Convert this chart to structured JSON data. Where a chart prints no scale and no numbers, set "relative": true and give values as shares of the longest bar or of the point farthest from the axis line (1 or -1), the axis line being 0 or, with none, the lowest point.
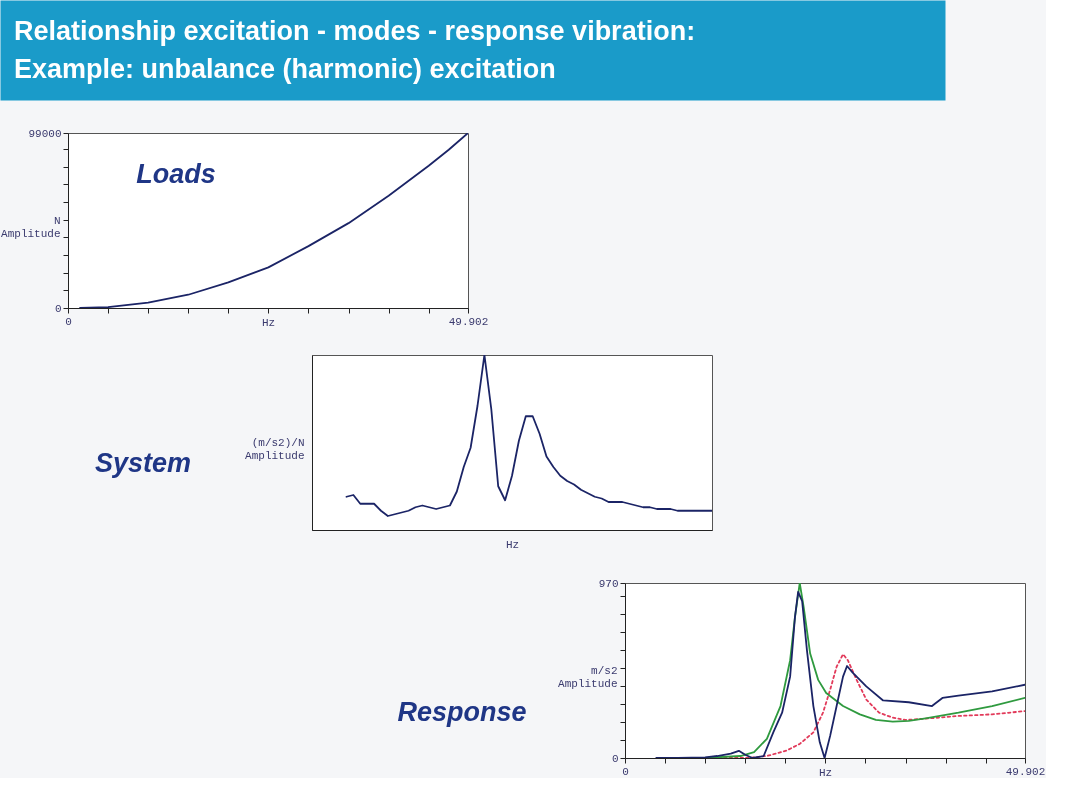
{
  "chart_data": [
    {
      "type": "other",
      "title": "Relationship excitation - modes - response vibration:",
      "subtitle": "Example: unbalance (harmonic) excitation"
    },
    {
      "type": "line",
      "title": "Loads",
      "xlabel": "Hz",
      "ylabel": "N\nAmplitude",
      "color": "#1b2466",
      "x": [
        1.5,
        5,
        10,
        15,
        20,
        25,
        30,
        35,
        40,
        45,
        47.5,
        49.902
      ],
      "values": [
        0,
        500,
        3000,
        7500,
        14500,
        23000,
        35000,
        48000,
        63500,
        80500,
        89500,
        99000
      ],
      "xlim": [
        0,
        49.902
      ],
      "ylim": [
        0,
        99000
      ],
      "xticks": [
        0,
        {
          "value": 5,
          "label": null
        },
        {
          "value": 10,
          "label": null
        },
        {
          "value": 15,
          "label": null
        },
        {
          "value": 20,
          "label": null
        },
        {
          "value": 25,
          "label": null
        },
        {
          "value": 30,
          "label": null
        },
        {
          "value": 35,
          "label": null
        },
        {
          "value": 40,
          "label": null
        },
        {
          "value": 45,
          "label": null
        },
        49.902
      ],
      "yticks": [
        0,
        {
          "value": 10000,
          "label": null
        },
        {
          "value": 20000,
          "label": null
        },
        {
          "value": 30000,
          "label": null
        },
        {
          "value": 40000,
          "label": null
        },
        {
          "value": 50000,
          "label": null
        },
        {
          "value": 60000,
          "label": null
        },
        {
          "value": 70000,
          "label": null
        },
        {
          "value": 80000,
          "label": null
        },
        {
          "value": 90000,
          "label": null
        },
        99000
      ]
    },
    {
      "type": "line",
      "title": "System",
      "xlabel": "Hz",
      "ylabel": "(m/s2)/N\nAmplitude",
      "relative": true,
      "color": "#1b2466",
      "categories": [
        null,
        null,
        null,
        null,
        null,
        null,
        null,
        null,
        null,
        null,
        null,
        null,
        null,
        null,
        null,
        null,
        null,
        null,
        null,
        null,
        null,
        null,
        null,
        null,
        null,
        null,
        null,
        null,
        null,
        null,
        null,
        null,
        null,
        null,
        null,
        null,
        null,
        null,
        null,
        null,
        null,
        null,
        null,
        null,
        null,
        null,
        null,
        null,
        null,
        null,
        null,
        null,
        null,
        null,
        null,
        null,
        null,
        null,
        null
      ],
      "values": [
        null,
        null,
        null,
        null,
        null,
        0.19,
        0.2,
        0.15,
        0.15,
        0.15,
        0.11,
        0.08,
        0.09,
        0.1,
        0.11,
        0.13,
        0.14,
        0.13,
        0.12,
        0.13,
        0.14,
        0.22,
        0.36,
        0.47,
        0.71,
        1,
        0.69,
        0.25,
        0.17,
        0.31,
        0.51,
        0.65,
        0.65,
        0.55,
        0.42,
        0.36,
        0.31,
        0.28,
        0.26,
        0.23,
        0.21,
        0.19,
        0.18,
        0.16,
        0.16,
        0.16,
        0.15,
        0.14,
        0.13,
        0.13,
        0.12,
        0.12,
        0.12,
        0.11,
        0.11,
        0.11,
        0.11,
        0.11,
        0.11
      ]
    },
    {
      "type": "line",
      "title": "Response",
      "xlabel": "Hz",
      "ylabel": "m/s2\nAmplitude",
      "xlim": [
        0,
        49.902
      ],
      "ylim": [
        0,
        970
      ],
      "xticks": [
        0,
        {
          "value": 5,
          "label": null
        },
        {
          "value": 10,
          "label": null
        },
        {
          "value": 15,
          "label": null
        },
        {
          "value": 20,
          "label": null
        },
        {
          "value": 25,
          "label": null
        },
        {
          "value": 30,
          "label": null
        },
        {
          "value": 35,
          "label": null
        },
        {
          "value": 40,
          "label": null
        },
        {
          "value": 45,
          "label": null
        },
        49.902
      ],
      "yticks": [
        0,
        {
          "value": 100,
          "label": null
        },
        {
          "value": 200,
          "label": null
        },
        {
          "value": 300,
          "label": null
        },
        {
          "value": 400,
          "label": null
        },
        {
          "value": 500,
          "label": null
        },
        {
          "value": 600,
          "label": null
        },
        {
          "value": 700,
          "label": null
        },
        {
          "value": 800,
          "label": null
        },
        {
          "value": 900,
          "label": null
        },
        970
      ],
      "series": [
        {
          "color": "#e23a5a",
          "line_style": "dotted",
          "x": [
            10.3,
            15.3,
            17.7,
            20.2,
            21.8,
            23.5,
            24.7,
            25.6,
            26.4,
            27.2,
            27.8,
            28.9,
            30.1,
            31.7,
            33.4,
            35,
            37.5,
            41.6,
            45.8,
            49.9
          ],
          "values": [
            0,
            0,
            11,
            42,
            78,
            142,
            251,
            379,
            506,
            575,
            542,
            433,
            324,
            251,
            224,
            211,
            218,
            233,
            242,
            260
          ]
        },
        {
          "color": "#2f9a3f",
          "x": [
            9.9,
            14.4,
            16.1,
            17.7,
            19.4,
            20.6,
            21.2,
            21.8,
            22.3,
            23.1,
            24.1,
            25.1,
            27.2,
            29.3,
            31.3,
            33.4,
            35.4,
            37.5,
            41.6,
            45.8,
            49.9
          ],
          "values": [
            0,
            11,
            33,
            106,
            288,
            542,
            779,
            970,
            834,
            579,
            433,
            360,
            288,
            242,
            211,
            202,
            206,
            220,
            251,
            288,
            333
          ]
        },
        {
          "color": "#1b2466",
          "x": [
            3.9,
            6.6,
            10,
            11.5,
            13.2,
            14.2,
            15,
            15.9,
            17.3,
            18.5,
            19.6,
            20.6,
            21.2,
            21.6,
            22.1,
            22.7,
            23.5,
            24.3,
            24.9,
            25.6,
            26.4,
            27.2,
            27.7,
            28.4,
            30.1,
            32.2,
            35.4,
            38.3,
            38.7,
            39.6,
            41.6,
            45.8,
            49.9
          ],
          "values": [
            0,
            0,
            4,
            11,
            24,
            40,
            18,
            0,
            11,
            142,
            251,
            451,
            779,
            921,
            870,
            597,
            288,
            87,
            0,
            124,
            288,
            451,
            510,
            473,
            397,
            319,
            309,
            288,
            302,
            333,
            346,
            369,
            406
          ]
        }
      ]
    }
  ]
}
